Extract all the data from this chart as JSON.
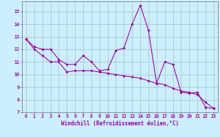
{
  "xlabel": "Windchill (Refroidissement éolien,°C)",
  "background_color": "#cceeff",
  "grid_color": "#aacccc",
  "line_color": "#990099",
  "xlim": [
    -0.5,
    23.5
  ],
  "ylim": [
    7,
    15.8
  ],
  "xticks": [
    0,
    1,
    2,
    3,
    4,
    5,
    6,
    7,
    8,
    9,
    10,
    11,
    12,
    13,
    14,
    15,
    16,
    17,
    18,
    19,
    20,
    21,
    22,
    23
  ],
  "yticks": [
    7,
    8,
    9,
    10,
    11,
    12,
    13,
    14,
    15
  ],
  "series1_x": [
    0,
    1,
    2,
    3,
    4,
    5,
    6,
    7,
    8,
    9,
    10,
    11,
    12,
    13,
    14,
    15,
    16,
    17,
    18,
    19,
    20,
    21,
    22,
    23
  ],
  "series1_y": [
    12.8,
    12.2,
    12.0,
    12.0,
    11.2,
    10.8,
    10.8,
    11.5,
    11.0,
    10.3,
    10.4,
    11.9,
    12.1,
    14.0,
    15.5,
    13.5,
    9.3,
    11.0,
    10.8,
    8.6,
    8.5,
    8.6,
    7.4,
    7.3
  ],
  "series2_x": [
    0,
    1,
    2,
    3,
    4,
    5,
    6,
    7,
    8,
    9,
    10,
    11,
    12,
    13,
    14,
    15,
    16,
    17,
    18,
    19,
    20,
    21,
    22,
    23
  ],
  "series2_y": [
    12.8,
    12.0,
    11.5,
    11.0,
    11.0,
    10.2,
    10.3,
    10.3,
    10.3,
    10.2,
    10.1,
    10.0,
    9.9,
    9.8,
    9.7,
    9.5,
    9.3,
    9.2,
    8.9,
    8.7,
    8.6,
    8.4,
    7.8,
    7.3
  ]
}
